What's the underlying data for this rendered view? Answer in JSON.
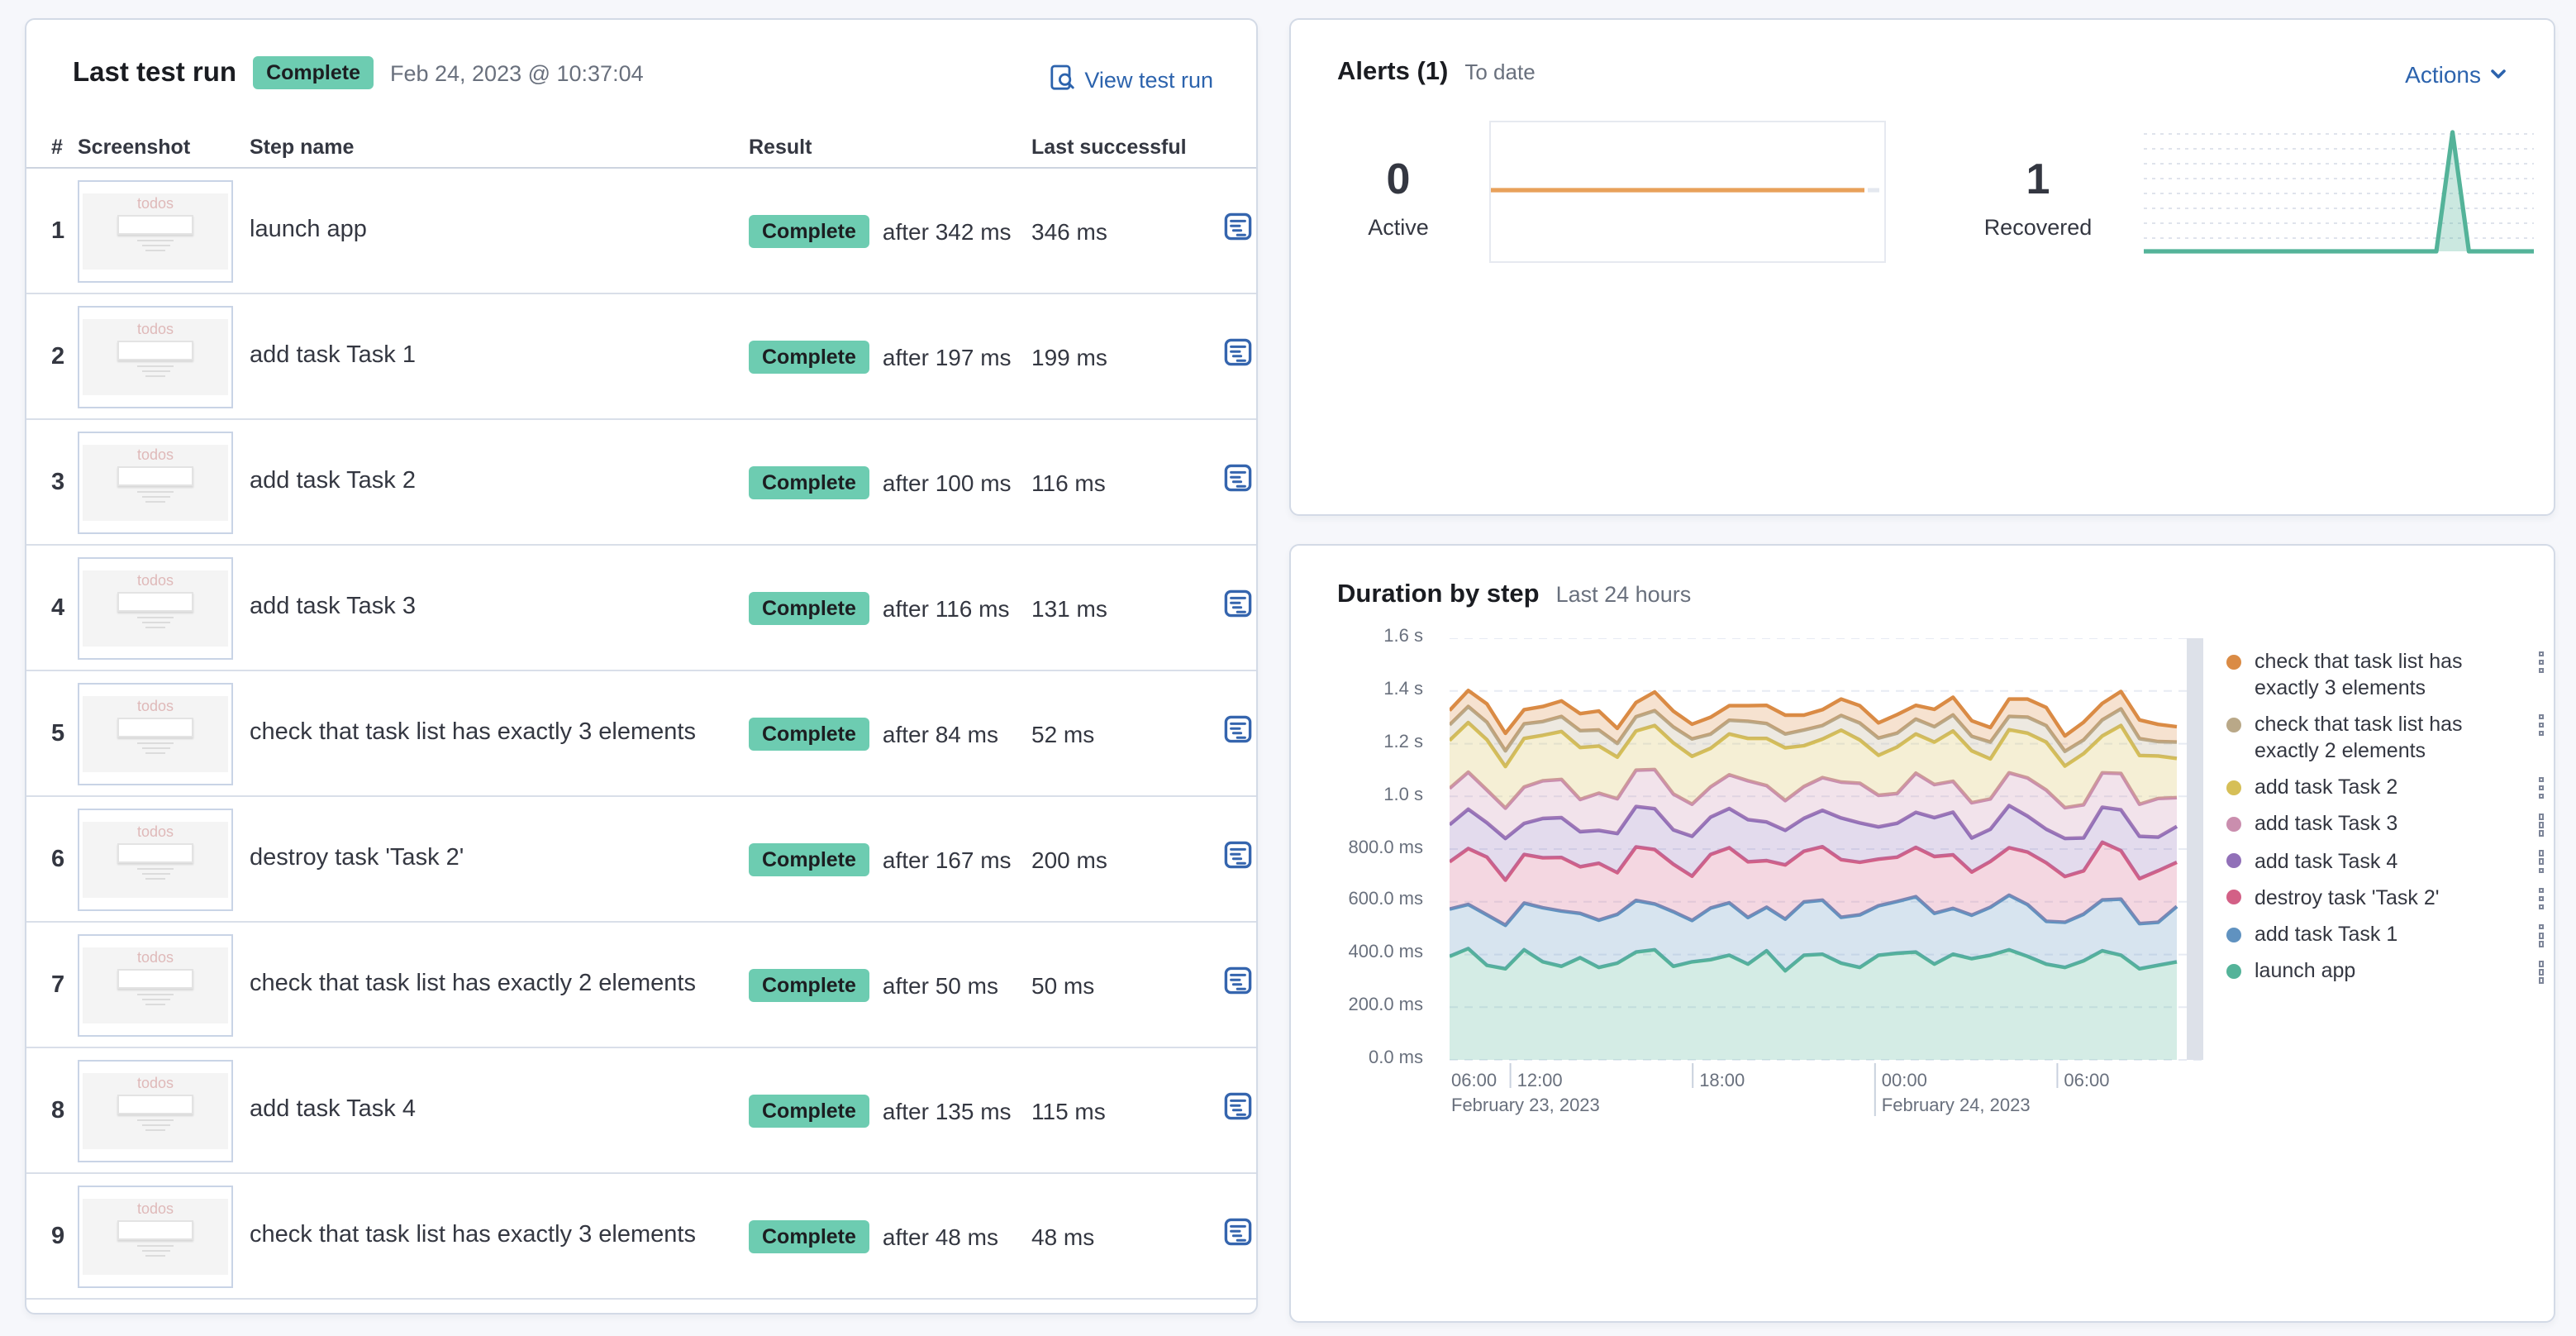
{
  "colors": {
    "link_blue": "#2C63AD",
    "badge_green": "#6DCCB1",
    "panel_border": "#D3DAE6",
    "text": "#343741",
    "subdued_text": "#69707D",
    "gridline": "#E7EBF3",
    "now_bar": "#DDE1E9",
    "active_alert_line": "#E8A15A",
    "recovered_alert_line": "#54B399"
  },
  "icons": {
    "view_test_run": "inspect-icon",
    "step_detail": "step-list-icon",
    "actions": "chevron-down-icon",
    "legend_menu": "kebab-menu-icon"
  },
  "last_test_run": {
    "title": "Last test run",
    "status_badge": "Complete",
    "timestamp": "Feb 24, 2023 @ 10:37:04",
    "view_link": "View test run",
    "thumbnail_label": "todos",
    "columns": {
      "num": "#",
      "screenshot": "Screenshot",
      "step": "Step name",
      "result": "Result",
      "last_successful": "Last successful"
    },
    "rows": [
      {
        "num": "1",
        "step": "launch app",
        "status": "Complete",
        "after": "after 342 ms",
        "last": "346 ms"
      },
      {
        "num": "2",
        "step": "add task Task 1",
        "status": "Complete",
        "after": "after 197 ms",
        "last": "199 ms"
      },
      {
        "num": "3",
        "step": "add task Task 2",
        "status": "Complete",
        "after": "after 100 ms",
        "last": "116 ms"
      },
      {
        "num": "4",
        "step": "add task Task 3",
        "status": "Complete",
        "after": "after 116 ms",
        "last": "131 ms"
      },
      {
        "num": "5",
        "step": "check that task list has exactly 3 elements",
        "status": "Complete",
        "after": "after 84 ms",
        "last": "52 ms"
      },
      {
        "num": "6",
        "step": "destroy task 'Task 2'",
        "status": "Complete",
        "after": "after 167 ms",
        "last": "200 ms"
      },
      {
        "num": "7",
        "step": "check that task list has exactly 2 elements",
        "status": "Complete",
        "after": "after 50 ms",
        "last": "50 ms"
      },
      {
        "num": "8",
        "step": "add task Task 4",
        "status": "Complete",
        "after": "after 135 ms",
        "last": "115 ms"
      },
      {
        "num": "9",
        "step": "check that task list has exactly 3 elements",
        "status": "Complete",
        "after": "after 48 ms",
        "last": "48 ms"
      }
    ]
  },
  "alerts": {
    "title": "Alerts (1)",
    "subtitle": "To date",
    "actions_label": "Actions",
    "active": {
      "value": "0",
      "label": "Active"
    },
    "recovered": {
      "value": "1",
      "label": "Recovered"
    }
  },
  "duration": {
    "title": "Duration by step",
    "subtitle": "Last 24 hours"
  },
  "chart_data": [
    {
      "id": "alerts_active_sparkline",
      "type": "line",
      "name": "Active alerts over time",
      "color": "#E8A15A",
      "baseline": "center",
      "values": [
        0,
        0,
        0,
        0,
        0,
        0,
        0,
        0,
        0,
        0,
        0,
        0,
        0,
        0,
        0,
        0,
        0,
        0,
        0,
        0,
        0,
        0,
        0,
        0,
        0
      ]
    },
    {
      "id": "alerts_recovered_sparkline",
      "type": "area",
      "name": "Recovered alerts over time",
      "color": "#54B399",
      "grid": "dashed-horizontal",
      "values": [
        0,
        0,
        0,
        0,
        0,
        0,
        0,
        0,
        0,
        0,
        0,
        0,
        0,
        0,
        0,
        0,
        0,
        0,
        0,
        1,
        0,
        0,
        0,
        0,
        0
      ]
    },
    {
      "id": "duration_by_step",
      "type": "area",
      "stacked": true,
      "title": "Duration by step",
      "time_range": "Last 24 hours",
      "ylim_ms": [
        0,
        1600
      ],
      "y_tick_labels": [
        "1.6 s",
        "1.4 s",
        "1.2 s",
        "1.0 s",
        "800.0 ms",
        "600.0 ms",
        "400.0 ms",
        "200.0 ms",
        "0.0 ms"
      ],
      "domain_hours": 24.8,
      "x_ticks": [
        {
          "label": "06:00",
          "h": 0
        },
        {
          "label": "12:00",
          "h": 2
        },
        {
          "label": "18:00",
          "h": 8
        },
        {
          "label": "00:00",
          "h": 14,
          "tall": true
        },
        {
          "label": "06:00",
          "h": 20
        }
      ],
      "x_dates": [
        {
          "label": "February 23, 2023",
          "h": 0
        },
        {
          "label": "February 24, 2023",
          "h": 14
        }
      ],
      "legend_position": "right",
      "series": [
        {
          "name": "launch app",
          "color": "#54B399",
          "values_ms": [
            393,
            422,
            359,
            346,
            418,
            372,
            355,
            388,
            351,
            367,
            409,
            418,
            355,
            372,
            380,
            397,
            363,
            414,
            338,
            397,
            401,
            367,
            351,
            397,
            405,
            409,
            363,
            401,
            384,
            397,
            418,
            393,
            363,
            351,
            376,
            414,
            397,
            346,
            359,
            372
          ]
        },
        {
          "name": "add task Task 1",
          "color": "#6092C0",
          "values_ms": [
            179,
            168,
            191,
            165,
            177,
            205,
            210,
            168,
            179,
            185,
            196,
            174,
            207,
            157,
            196,
            199,
            177,
            165,
            196,
            202,
            205,
            174,
            199,
            188,
            196,
            210,
            193,
            174,
            165,
            182,
            207,
            196,
            163,
            171,
            177,
            193,
            213,
            171,
            163,
            210
          ]
        },
        {
          "name": "destroy task 'Task 2'",
          "color": "#D36086",
          "values_ms": [
            180,
            212,
            219,
            171,
            184,
            190,
            203,
            177,
            216,
            158,
            203,
            206,
            180,
            168,
            203,
            209,
            212,
            177,
            206,
            193,
            203,
            219,
            200,
            177,
            168,
            187,
            216,
            203,
            164,
            174,
            180,
            200,
            222,
            174,
            164,
            219,
            184,
            171,
            196,
            168
          ]
        },
        {
          "name": "add task Task 4",
          "color": "#9170B8",
          "values_ms": [
            140,
            149,
            131,
            158,
            118,
            149,
            151,
            133,
            125,
            149,
            153,
            155,
            131,
            151,
            142,
            149,
            160,
            147,
            131,
            125,
            138,
            158,
            149,
            122,
            129,
            133,
            147,
            162,
            129,
            122,
            160,
            136,
            127,
            144,
            125,
            133,
            155,
            160,
            127,
            136
          ]
        },
        {
          "name": "add task Task 3",
          "color": "#CA8EAE",
          "values_ms": [
            138,
            141,
            124,
            115,
            138,
            143,
            145,
            122,
            141,
            132,
            138,
            149,
            136,
            122,
            115,
            128,
            147,
            138,
            113,
            120,
            124,
            136,
            151,
            120,
            113,
            149,
            126,
            117,
            134,
            115,
            124,
            145,
            149,
            117,
            126,
            130,
            138,
            122,
            147,
            109
          ]
        },
        {
          "name": "add task Task 2",
          "color": "#D6BF57",
          "values_ms": [
            182,
            188,
            191,
            158,
            185,
            173,
            182,
            197,
            179,
            158,
            149,
            167,
            194,
            182,
            146,
            155,
            161,
            179,
            200,
            155,
            146,
            197,
            164,
            152,
            176,
            149,
            161,
            191,
            197,
            152,
            164,
            170,
            182,
            158,
            194,
            140,
            182,
            185,
            161,
            149
          ]
        },
        {
          "name": "check that task list has exactly 2 elements",
          "color": "#B9A888",
          "values_ms": [
            59,
            61,
            66,
            60,
            55,
            52,
            57,
            64,
            61,
            52,
            54,
            56,
            60,
            66,
            54,
            52,
            65,
            56,
            53,
            60,
            52,
            56,
            64,
            65,
            53,
            56,
            58,
            61,
            55,
            64,
            50,
            61,
            62,
            56,
            52,
            61,
            63,
            64,
            55,
            62
          ]
        },
        {
          "name": "check that task list has exactly 3 elements",
          "color": "#DA8B45",
          "values_ms": [
            55,
            61,
            70,
            66,
            54,
            57,
            59,
            65,
            72,
            57,
            54,
            71,
            60,
            56,
            64,
            55,
            59,
            69,
            71,
            56,
            60,
            62,
            66,
            58,
            70,
            52,
            66,
            67,
            59,
            55,
            66,
            68,
            69,
            58,
            67,
            63,
            66,
            71,
            65,
            58
          ]
        }
      ]
    }
  ]
}
